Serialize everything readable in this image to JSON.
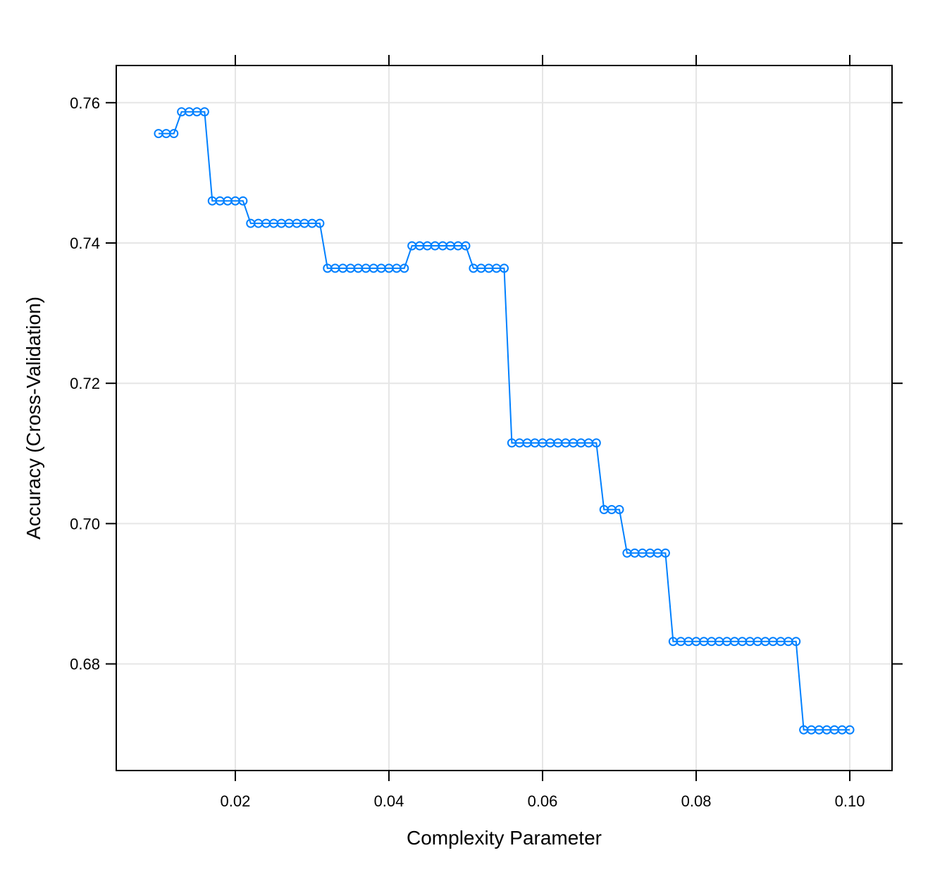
{
  "chart_data": {
    "type": "line",
    "title": "",
    "xlabel": "Complexity Parameter",
    "ylabel": "Accuracy (Cross-Validation)",
    "xlim": [
      0.0045,
      0.1055
    ],
    "ylim": [
      0.6648,
      0.7653
    ],
    "xticks": [
      0.02,
      0.04,
      0.06,
      0.08,
      0.1
    ],
    "xtick_labels": [
      "0.02",
      "0.04",
      "0.06",
      "0.08",
      "0.10"
    ],
    "yticks": [
      0.68,
      0.7,
      0.72,
      0.74,
      0.76
    ],
    "ytick_labels": [
      "0.68",
      "0.70",
      "0.72",
      "0.74",
      "0.76"
    ],
    "grid": true,
    "colors": {
      "series": "#0080ff",
      "grid": "#e6e6e6",
      "axis": "#000000"
    },
    "series": [
      {
        "x": [
          0.01,
          0.011,
          0.012,
          0.013,
          0.014,
          0.015,
          0.016,
          0.017,
          0.018,
          0.019,
          0.02,
          0.021,
          0.022,
          0.023,
          0.024,
          0.025,
          0.026,
          0.027,
          0.028,
          0.029,
          0.03,
          0.031,
          0.032,
          0.033,
          0.034,
          0.035,
          0.036,
          0.037,
          0.038,
          0.039,
          0.04,
          0.041,
          0.042,
          0.043,
          0.044,
          0.045,
          0.046,
          0.047,
          0.048,
          0.049,
          0.05,
          0.051,
          0.052,
          0.053,
          0.054,
          0.055,
          0.056,
          0.057,
          0.058,
          0.059,
          0.06,
          0.061,
          0.062,
          0.063,
          0.064,
          0.065,
          0.066,
          0.067,
          0.068,
          0.069,
          0.07,
          0.071,
          0.072,
          0.073,
          0.074,
          0.075,
          0.076,
          0.077,
          0.078,
          0.079,
          0.08,
          0.081,
          0.082,
          0.083,
          0.084,
          0.085,
          0.086,
          0.087,
          0.088,
          0.089,
          0.09,
          0.091,
          0.092,
          0.093,
          0.094,
          0.095,
          0.096,
          0.097,
          0.098,
          0.099,
          0.1
        ],
        "y": [
          0.7556,
          0.7556,
          0.7556,
          0.7587,
          0.7587,
          0.7587,
          0.7587,
          0.746,
          0.746,
          0.746,
          0.746,
          0.746,
          0.7428,
          0.7428,
          0.7428,
          0.7428,
          0.7428,
          0.7428,
          0.7428,
          0.7428,
          0.7428,
          0.7428,
          0.7364,
          0.7364,
          0.7364,
          0.7364,
          0.7364,
          0.7364,
          0.7364,
          0.7364,
          0.7364,
          0.7364,
          0.7364,
          0.7396,
          0.7396,
          0.7396,
          0.7396,
          0.7396,
          0.7396,
          0.7396,
          0.7396,
          0.7364,
          0.7364,
          0.7364,
          0.7364,
          0.7364,
          0.7115,
          0.7115,
          0.7115,
          0.7115,
          0.7115,
          0.7115,
          0.7115,
          0.7115,
          0.7115,
          0.7115,
          0.7115,
          0.7115,
          0.702,
          0.702,
          0.702,
          0.6958,
          0.6958,
          0.6958,
          0.6958,
          0.6958,
          0.6958,
          0.6832,
          0.6832,
          0.6832,
          0.6832,
          0.6832,
          0.6832,
          0.6832,
          0.6832,
          0.6832,
          0.6832,
          0.6832,
          0.6832,
          0.6832,
          0.6832,
          0.6832,
          0.6832,
          0.6832,
          0.6706,
          0.6706,
          0.6706,
          0.6706,
          0.6706,
          0.6706,
          0.6706
        ]
      }
    ]
  }
}
